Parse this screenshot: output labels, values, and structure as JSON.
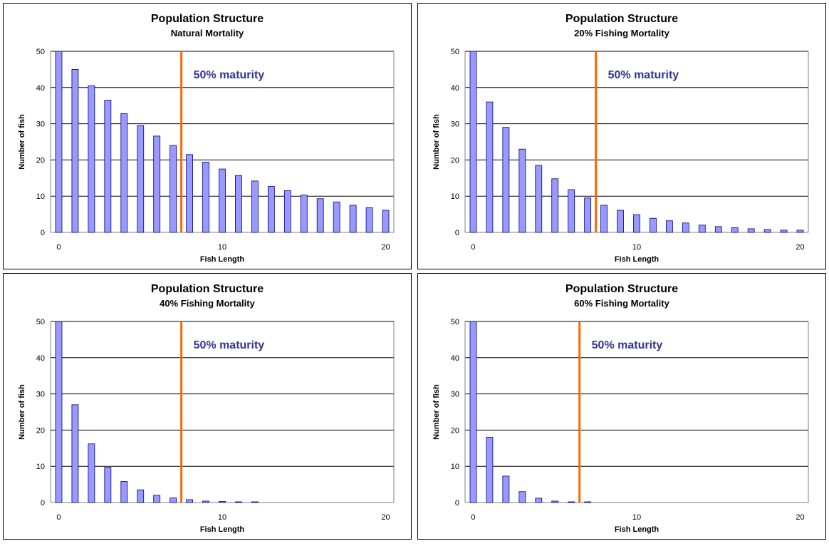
{
  "colors": {
    "bar_fill": "#9999ff",
    "bar_stroke": "#000080",
    "marker": "#ff6600",
    "annotation": "#333399"
  },
  "chart_data": [
    {
      "type": "bar",
      "title": "Population Structure",
      "subtitle": "Natural Mortality",
      "xlabel": "Fish Length",
      "ylabel": "Number of fish",
      "ylim": [
        0,
        50
      ],
      "yticks": [
        "0",
        "10",
        "20",
        "30",
        "40",
        "50"
      ],
      "xticks": [
        {
          "value": 0,
          "label": "0"
        },
        {
          "value": 10,
          "label": "10"
        },
        {
          "value": 20,
          "label": "20"
        }
      ],
      "grid": true,
      "x": [
        0,
        1,
        2,
        3,
        4,
        5,
        6,
        7,
        8,
        9,
        10,
        11,
        12,
        13,
        14,
        15,
        16,
        17,
        18,
        19,
        20
      ],
      "values": [
        50,
        45,
        40.5,
        36.5,
        32.8,
        29.5,
        26.6,
        24,
        21.5,
        19.4,
        17.5,
        15.7,
        14.2,
        12.7,
        11.5,
        10.3,
        9.3,
        8.4,
        7.5,
        6.8,
        6.1
      ],
      "marker": {
        "x": 7.5,
        "label": "50% maturity"
      }
    },
    {
      "type": "bar",
      "title": "Population Structure",
      "subtitle": "20% Fishing Mortality",
      "xlabel": "Fish Length",
      "ylabel": "Number of fish",
      "ylim": [
        0,
        50
      ],
      "yticks": [
        "0",
        "10",
        "20",
        "30",
        "40",
        "50"
      ],
      "xticks": [
        {
          "value": 0,
          "label": "0"
        },
        {
          "value": 10,
          "label": "10"
        },
        {
          "value": 20,
          "label": "20"
        }
      ],
      "grid": true,
      "x": [
        0,
        1,
        2,
        3,
        4,
        5,
        6,
        7,
        8,
        9,
        10,
        11,
        12,
        13,
        14,
        15,
        16,
        17,
        18,
        19,
        20
      ],
      "values": [
        50,
        36,
        29,
        23,
        18.5,
        14.8,
        11.8,
        9.5,
        7.5,
        6.1,
        4.9,
        3.9,
        3.2,
        2.6,
        2,
        1.6,
        1.3,
        1,
        0.8,
        0.6,
        0.6
      ],
      "marker": {
        "x": 7.5,
        "label": "50% maturity"
      }
    },
    {
      "type": "bar",
      "title": "Population Structure",
      "subtitle": "40% Fishing Mortality",
      "xlabel": "Fish Length",
      "ylabel": "Number of fish",
      "ylim": [
        0,
        50
      ],
      "yticks": [
        "0",
        "10",
        "20",
        "30",
        "40",
        "50"
      ],
      "xticks": [
        {
          "value": 0,
          "label": "0"
        },
        {
          "value": 10,
          "label": "10"
        },
        {
          "value": 20,
          "label": "20"
        }
      ],
      "grid": true,
      "x": [
        0,
        1,
        2,
        3,
        4,
        5,
        6,
        7,
        8,
        9,
        10,
        11,
        12,
        13,
        14,
        15,
        16,
        17,
        18,
        19,
        20
      ],
      "values": [
        50,
        27,
        16.2,
        9.7,
        5.8,
        3.5,
        2,
        1.3,
        0.8,
        0.4,
        0.3,
        0.2,
        0.1,
        0,
        0,
        0,
        0,
        0,
        0,
        0,
        0
      ],
      "marker": {
        "x": 7.5,
        "label": "50% maturity"
      }
    },
    {
      "type": "bar",
      "title": "Population Structure",
      "subtitle": "60% Fishing Mortality",
      "xlabel": "Fish Length",
      "ylabel": "Number of fish",
      "ylim": [
        0,
        50
      ],
      "yticks": [
        "0",
        "10",
        "20",
        "30",
        "40",
        "50"
      ],
      "xticks": [
        {
          "value": 0,
          "label": "0"
        },
        {
          "value": 10,
          "label": "10"
        },
        {
          "value": 20,
          "label": "20"
        }
      ],
      "grid": true,
      "x": [
        0,
        1,
        2,
        3,
        4,
        5,
        6,
        7,
        8,
        9,
        10,
        11,
        12,
        13,
        14,
        15,
        16,
        17,
        18,
        19,
        20
      ],
      "values": [
        50,
        18,
        7.3,
        3,
        1.2,
        0.4,
        0.2,
        0.1,
        0,
        0,
        0,
        0,
        0,
        0,
        0,
        0,
        0,
        0,
        0,
        0,
        0
      ],
      "marker": {
        "x": 6.5,
        "label": "50% maturity"
      }
    }
  ]
}
